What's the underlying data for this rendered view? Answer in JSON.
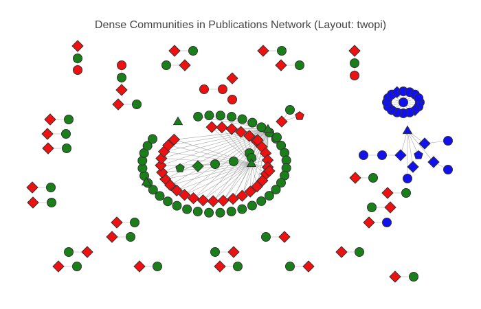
{
  "title": "Dense Communities in Publications Network (Layout: twopi)",
  "colors": {
    "green_community": "#1a7f1a",
    "red_community": "#ee1111",
    "blue_community": "#1111ee",
    "edge": "#a8a8a8",
    "node_outline": "#333333",
    "title_text": "#444444"
  },
  "legend": {
    "shapes_meaning": "circle, diamond, triangle and pentagon markers; no legend shown"
  }
}
